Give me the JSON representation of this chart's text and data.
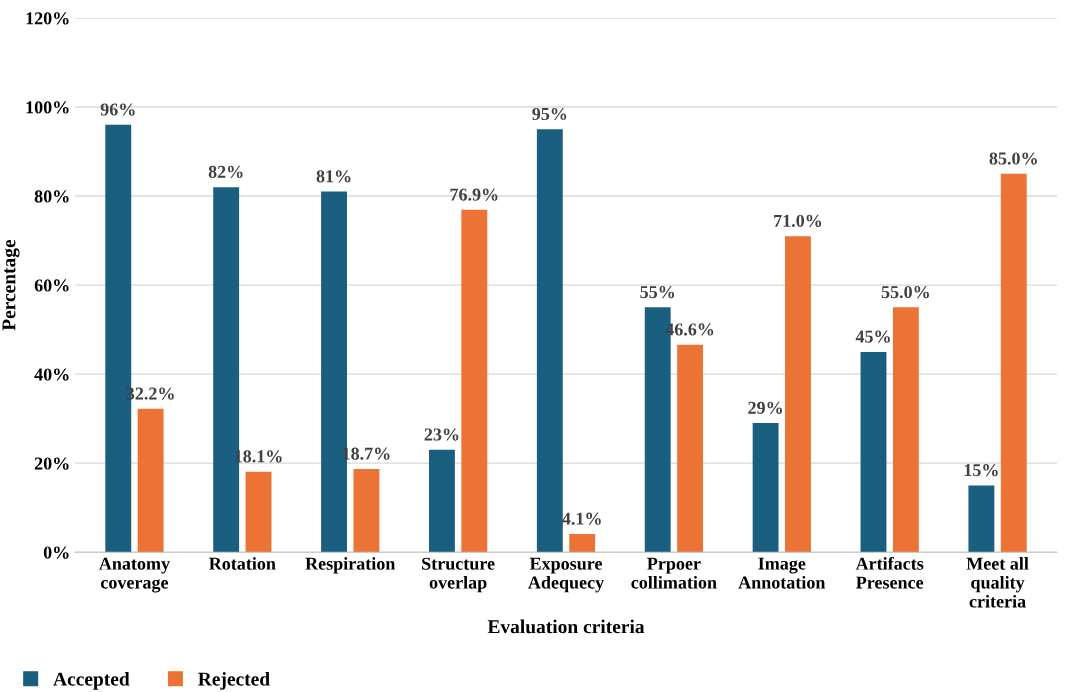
{
  "chart_data": {
    "type": "bar",
    "xlabel": "Evaluation criteria",
    "ylabel": "Percentage",
    "categories": [
      "Anatomy\ncoverage",
      "Rotation",
      "Respiration",
      "Structure\noverlap",
      "Exposure\nAdequecy",
      "Prpoer\ncollimation",
      "Image\nAnnotation",
      "Artifacts\nPresence",
      "Meet all\nquality\ncriteria"
    ],
    "series": [
      {
        "name": "Accepted",
        "color": "#1a5e80",
        "values": [
          96,
          82,
          81,
          23,
          95,
          55,
          29,
          45,
          15
        ],
        "value_labels": [
          "96%",
          "82%",
          "81%",
          "23%",
          "95%",
          "55%",
          "29%",
          "45%",
          "15%"
        ]
      },
      {
        "name": "Rejected",
        "color": "#ea7335",
        "values": [
          32.2,
          18.1,
          18.7,
          76.9,
          4.1,
          46.6,
          71.0,
          55.0,
          85.0
        ],
        "value_labels": [
          "32.2%",
          "18.1%",
          "18.7%",
          "76.9%",
          "4.1%",
          "46.6%",
          "71.0%",
          "55.0%",
          "85.0%"
        ]
      }
    ],
    "ylim": [
      0,
      120
    ],
    "yticks": [
      {
        "value": 0,
        "label": "0%"
      },
      {
        "value": 20,
        "label": "20%"
      },
      {
        "value": 40,
        "label": "40%"
      },
      {
        "value": 60,
        "label": "60%"
      },
      {
        "value": 80,
        "label": "80%"
      },
      {
        "value": 100,
        "label": "100%"
      },
      {
        "value": 120,
        "label": "120%"
      }
    ],
    "grid": "y",
    "legend": "bottom left"
  }
}
